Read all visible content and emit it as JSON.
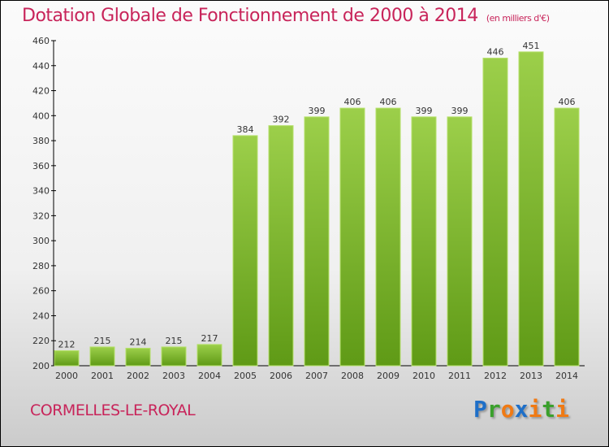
{
  "title": "Dotation Globale de Fonctionnement de 2000 à 2014",
  "subtitle": "(en milliers d'€)",
  "city": "CORMELLES-LE-ROYAL",
  "logo": {
    "text": "Proxiti",
    "letters": [
      "P",
      "r",
      "o",
      "x",
      "i",
      "t",
      "i"
    ],
    "colors": [
      "#1e6fc8",
      "#3aa02c",
      "#f07a14",
      "#1e6fc8",
      "#f07a14",
      "#3aa02c",
      "#f07a14"
    ]
  },
  "chart_data": {
    "type": "bar",
    "title": "Dotation Globale de Fonctionnement de 2000 à 2014",
    "ylabel": "en milliers d'€",
    "categories": [
      "2000",
      "2001",
      "2002",
      "2003",
      "2004",
      "2005",
      "2006",
      "2007",
      "2008",
      "2009",
      "2010",
      "2011",
      "2012",
      "2013",
      "2014"
    ],
    "values": [
      212,
      215,
      214,
      215,
      217,
      384,
      392,
      399,
      406,
      406,
      399,
      399,
      446,
      451,
      406
    ],
    "ylim": [
      200,
      460
    ],
    "yticks": [
      200,
      220,
      240,
      260,
      280,
      300,
      320,
      340,
      360,
      380,
      400,
      420,
      440,
      460
    ],
    "grid": false,
    "bar_color": "#6fa61e"
  }
}
